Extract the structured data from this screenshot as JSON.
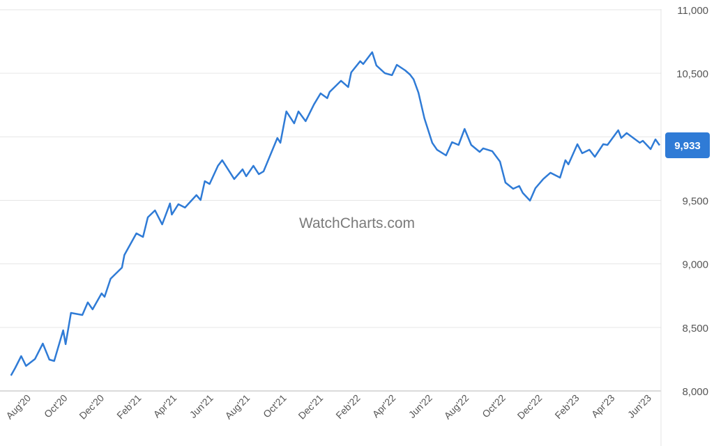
{
  "watermark": "WatchCharts.com",
  "chart_data": {
    "type": "line",
    "title": "",
    "xlabel": "",
    "ylabel": "",
    "ylim": [
      8000,
      11000
    ],
    "yticks": [
      8000,
      8500,
      9000,
      9500,
      10000,
      10500,
      11000
    ],
    "ytick_labels": [
      "8,000",
      "8,500",
      "9,000",
      "9,500",
      "10,000",
      "10,500",
      "11,000"
    ],
    "y_axis_position": "right",
    "xticks": [
      "2020-08-01",
      "2020-10-01",
      "2020-12-01",
      "2021-02-01",
      "2021-04-01",
      "2021-06-01",
      "2021-08-01",
      "2021-10-01",
      "2021-12-01",
      "2022-02-01",
      "2022-04-01",
      "2022-06-01",
      "2022-08-01",
      "2022-10-01",
      "2022-12-01",
      "2023-02-01",
      "2023-04-01",
      "2023-06-01"
    ],
    "xtick_labels": [
      "Aug'20",
      "Oct'20",
      "Dec'20",
      "Feb'21",
      "Apr'21",
      "Jun'21",
      "Aug'21",
      "Oct'21",
      "Dec'21",
      "Feb'22",
      "Apr'22",
      "Jun'22",
      "Aug'22",
      "Oct'22",
      "Dec'22",
      "Feb'23",
      "Apr'23",
      "Jun'23"
    ],
    "grid": "horizontal",
    "line_color": "#2f7bd6",
    "last_value_label": "9,933",
    "series": [
      {
        "points": [
          [
            "2020-06-28",
            8121
          ],
          [
            "2020-07-05",
            8181
          ],
          [
            "2020-07-15",
            8274
          ],
          [
            "2020-07-23",
            8197
          ],
          [
            "2020-08-07",
            8252
          ],
          [
            "2020-08-20",
            8373
          ],
          [
            "2020-08-31",
            8247
          ],
          [
            "2020-09-08",
            8236
          ],
          [
            "2020-09-23",
            8477
          ],
          [
            "2020-09-27",
            8368
          ],
          [
            "2020-10-06",
            8614
          ],
          [
            "2020-10-25",
            8598
          ],
          [
            "2020-11-03",
            8697
          ],
          [
            "2020-11-11",
            8642
          ],
          [
            "2020-11-26",
            8768
          ],
          [
            "2020-12-01",
            8741
          ],
          [
            "2020-12-11",
            8883
          ],
          [
            "2020-12-30",
            8971
          ],
          [
            "2021-01-03",
            9070
          ],
          [
            "2021-01-23",
            9240
          ],
          [
            "2021-02-03",
            9212
          ],
          [
            "2021-02-11",
            9366
          ],
          [
            "2021-02-23",
            9421
          ],
          [
            "2021-03-07",
            9311
          ],
          [
            "2021-03-20",
            9476
          ],
          [
            "2021-03-23",
            9388
          ],
          [
            "2021-04-03",
            9470
          ],
          [
            "2021-04-14",
            9443
          ],
          [
            "2021-05-03",
            9541
          ],
          [
            "2021-05-10",
            9503
          ],
          [
            "2021-05-17",
            9651
          ],
          [
            "2021-05-25",
            9629
          ],
          [
            "2021-06-08",
            9772
          ],
          [
            "2021-06-15",
            9816
          ],
          [
            "2021-07-05",
            9668
          ],
          [
            "2021-07-19",
            9744
          ],
          [
            "2021-07-25",
            9690
          ],
          [
            "2021-08-06",
            9772
          ],
          [
            "2021-08-15",
            9706
          ],
          [
            "2021-08-23",
            9728
          ],
          [
            "2021-09-15",
            9991
          ],
          [
            "2021-09-20",
            9953
          ],
          [
            "2021-09-30",
            10200
          ],
          [
            "2021-10-13",
            10106
          ],
          [
            "2021-10-20",
            10200
          ],
          [
            "2021-11-01",
            10123
          ],
          [
            "2021-11-15",
            10255
          ],
          [
            "2021-11-26",
            10342
          ],
          [
            "2021-12-07",
            10304
          ],
          [
            "2021-12-11",
            10353
          ],
          [
            "2021-12-30",
            10441
          ],
          [
            "2022-01-11",
            10392
          ],
          [
            "2022-01-16",
            10507
          ],
          [
            "2022-01-31",
            10595
          ],
          [
            "2022-02-05",
            10573
          ],
          [
            "2022-02-20",
            10666
          ],
          [
            "2022-02-27",
            10562
          ],
          [
            "2022-03-13",
            10501
          ],
          [
            "2022-03-25",
            10485
          ],
          [
            "2022-04-02",
            10567
          ],
          [
            "2022-04-16",
            10523
          ],
          [
            "2022-04-24",
            10490
          ],
          [
            "2022-04-30",
            10452
          ],
          [
            "2022-05-08",
            10348
          ],
          [
            "2022-05-18",
            10145
          ],
          [
            "2022-05-31",
            9953
          ],
          [
            "2022-06-08",
            9898
          ],
          [
            "2022-06-23",
            9854
          ],
          [
            "2022-07-03",
            9958
          ],
          [
            "2022-07-14",
            9936
          ],
          [
            "2022-07-24",
            10062
          ],
          [
            "2022-08-04",
            9936
          ],
          [
            "2022-08-18",
            9881
          ],
          [
            "2022-08-24",
            9909
          ],
          [
            "2022-09-08",
            9887
          ],
          [
            "2022-09-21",
            9805
          ],
          [
            "2022-09-30",
            9640
          ],
          [
            "2022-10-13",
            9591
          ],
          [
            "2022-10-23",
            9613
          ],
          [
            "2022-10-29",
            9558
          ],
          [
            "2022-11-10",
            9498
          ],
          [
            "2022-11-19",
            9596
          ],
          [
            "2022-12-02",
            9668
          ],
          [
            "2022-12-14",
            9717
          ],
          [
            "2022-12-30",
            9679
          ],
          [
            "2023-01-08",
            9816
          ],
          [
            "2023-01-13",
            9783
          ],
          [
            "2023-01-28",
            9942
          ],
          [
            "2023-02-05",
            9871
          ],
          [
            "2023-02-17",
            9898
          ],
          [
            "2023-02-26",
            9843
          ],
          [
            "2023-03-12",
            9942
          ],
          [
            "2023-03-19",
            9936
          ],
          [
            "2023-04-06",
            10052
          ],
          [
            "2023-04-11",
            9991
          ],
          [
            "2023-04-20",
            10030
          ],
          [
            "2023-05-12",
            9953
          ],
          [
            "2023-05-17",
            9969
          ],
          [
            "2023-05-30",
            9903
          ],
          [
            "2023-06-07",
            9980
          ],
          [
            "2023-06-14",
            9933
          ]
        ]
      }
    ]
  }
}
